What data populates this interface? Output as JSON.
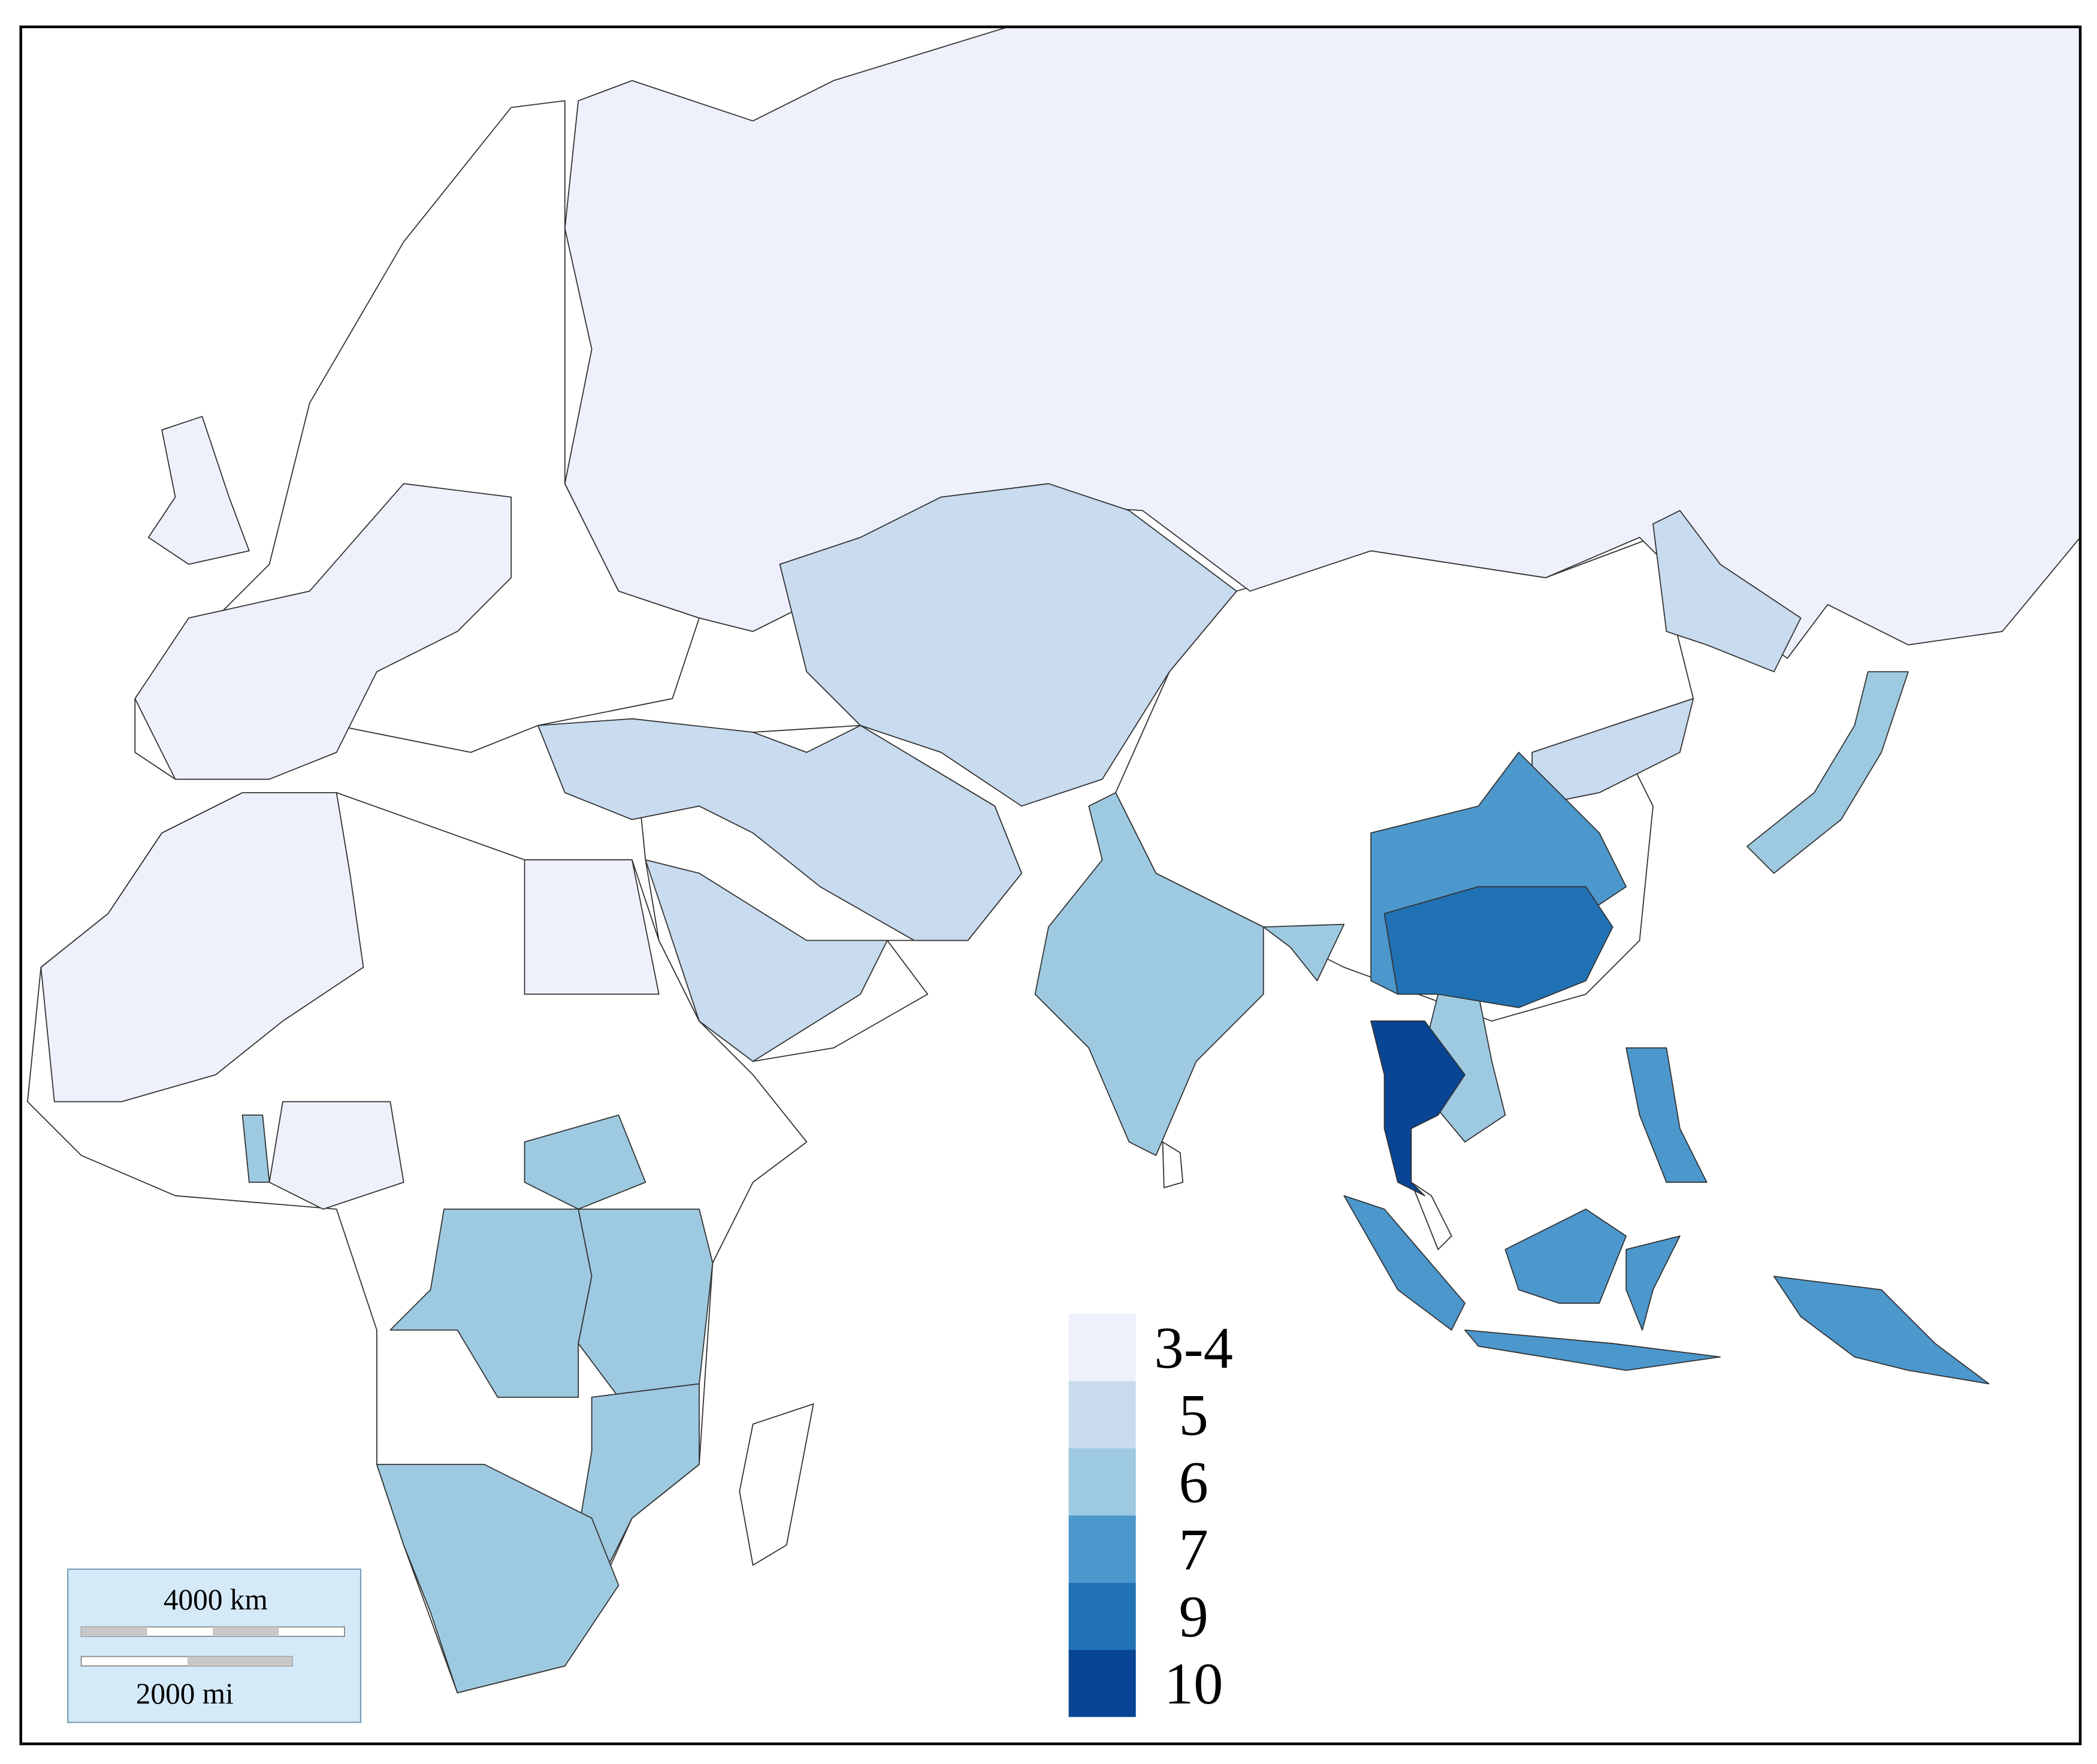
{
  "legend": {
    "items": [
      {
        "label": "3-4",
        "color": "#eef1fb"
      },
      {
        "label": "5",
        "color": "#c8dbef"
      },
      {
        "label": "6",
        "color": "#9ecae1"
      },
      {
        "label": "7",
        "color": "#4c97cc"
      },
      {
        "label": "9",
        "color": "#2171b5"
      },
      {
        "label": "10",
        "color": "#084594"
      }
    ]
  },
  "scale_bar": {
    "km_label": "4000 km",
    "mi_label": "2000 mi"
  }
}
